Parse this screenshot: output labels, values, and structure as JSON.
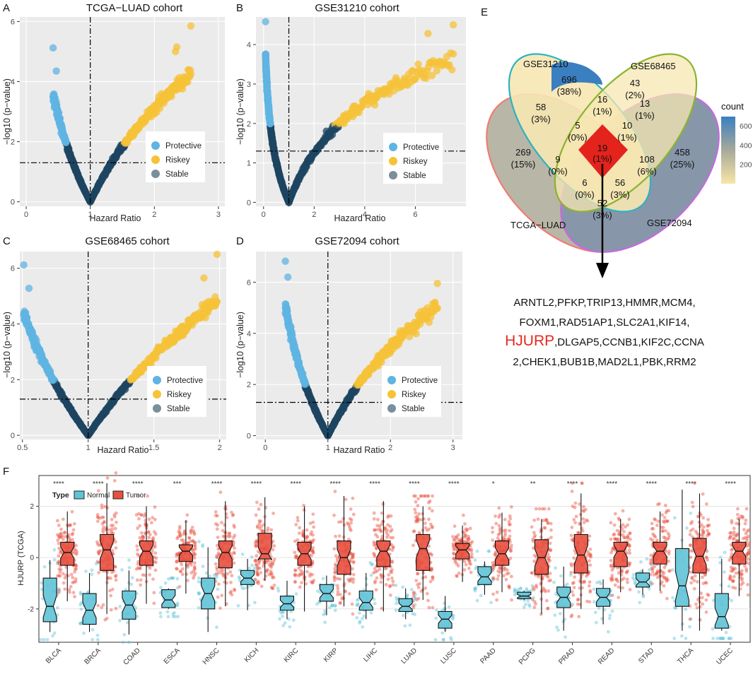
{
  "colors": {
    "protective": "#5fb4e2",
    "riskey": "#f6c238",
    "stable": "#1e4661",
    "panel_bg": "#ebebeb",
    "normal_box": "#5fc3d6",
    "tumor_box": "#e8503f",
    "venn_tcga": "#f07c73",
    "venn_gse31210": "#2c8fbd",
    "venn_gse68465": "#8ab32e",
    "venn_gse72094": "#c56ae0"
  },
  "volcano": {
    "xlabel": "Hazard Ratio",
    "ylabel": "−log10 (p−value)",
    "legend": [
      "Protective",
      "Riskey",
      "Stable"
    ]
  },
  "chart_data": [
    {
      "type": "scatter",
      "letter": "A",
      "title": "TCGA−LUAD cohort",
      "xlim": [
        -0.1,
        3.1
      ],
      "ylim": [
        -0.15,
        6.15
      ],
      "xticks": [
        0,
        1,
        2,
        3
      ],
      "yticks": [
        0,
        2,
        4,
        6
      ],
      "vline": 1,
      "hline": 1.3,
      "left_x_min": 0.42,
      "right_x_max": 2.57,
      "stable_x_range": [
        0.65,
        1.62
      ],
      "outliers": [
        [
          0.42,
          5.12
        ],
        [
          0.47,
          4.35
        ],
        [
          2.57,
          5.85
        ],
        [
          2.35,
          5.15
        ],
        [
          2.33,
          5.0
        ]
      ],
      "series": [
        "Protective",
        "Riskey",
        "Stable"
      ]
    },
    {
      "type": "scatter",
      "letter": "B",
      "title": "GSE31210 cohort",
      "xlim": [
        -0.3,
        8.0
      ],
      "ylim": [
        -0.1,
        4.7
      ],
      "xticks": [
        0,
        2,
        4,
        6
      ],
      "yticks": [
        0,
        1,
        2,
        3,
        4
      ],
      "vline": 1,
      "hline": 1.3,
      "left_x_min": 0.08,
      "right_x_max": 7.5,
      "stable_x_range": [
        0.45,
        2.0
      ],
      "outliers": [
        [
          0.08,
          4.58
        ],
        [
          7.5,
          4.5
        ],
        [
          6.5,
          4.28
        ]
      ],
      "series": [
        "Protective",
        "Riskey",
        "Stable"
      ]
    },
    {
      "type": "scatter",
      "letter": "C",
      "title": "GSE68465 cohort",
      "xlim": [
        0.48,
        2.05
      ],
      "ylim": [
        -0.15,
        6.6
      ],
      "xticks": [
        0.5,
        1.0,
        1.5,
        2.0
      ],
      "yticks": [
        0,
        2,
        4,
        6
      ],
      "vline": 1,
      "hline": 1.3,
      "left_x_min": 0.51,
      "right_x_max": 1.98,
      "stable_x_range": [
        0.58,
        1.45
      ],
      "outliers": [
        [
          0.51,
          6.12
        ],
        [
          0.55,
          5.28
        ],
        [
          1.98,
          6.5
        ],
        [
          1.88,
          5.65
        ]
      ],
      "series": [
        "Protective",
        "Riskey",
        "Stable"
      ]
    },
    {
      "type": "scatter",
      "letter": "D",
      "title": "GSE72094 cohort",
      "xlim": [
        -0.15,
        3.15
      ],
      "ylim": [
        -0.15,
        7.2
      ],
      "xticks": [
        0,
        1,
        2,
        3
      ],
      "yticks": [
        0,
        2,
        4,
        6
      ],
      "vline": 1,
      "hline": 1.3,
      "left_x_min": 0.32,
      "right_x_max": 2.75,
      "stable_x_range": [
        0.58,
        1.68
      ],
      "outliers": [
        [
          0.32,
          6.82
        ],
        [
          0.36,
          6.2
        ],
        [
          2.75,
          5.95
        ]
      ],
      "series": [
        "Protective",
        "Riskey",
        "Stable"
      ]
    },
    {
      "type": "venn",
      "letter": "E",
      "sets": [
        "GSE31210",
        "GSE68465",
        "TCGA−LUAD",
        "GSE72094"
      ],
      "regions": [
        {
          "count": "696",
          "pct": "(38%)"
        },
        {
          "count": "43",
          "pct": "(2%)"
        },
        {
          "count": "16",
          "pct": "(1%)"
        },
        {
          "count": "58",
          "pct": "(3%)"
        },
        {
          "count": "13",
          "pct": "(1%)"
        },
        {
          "count": "5",
          "pct": "(0%)"
        },
        {
          "count": "10",
          "pct": "(1%)"
        },
        {
          "count": "269",
          "pct": "(15%)"
        },
        {
          "count": "9",
          "pct": "(0%)"
        },
        {
          "count": "19",
          "pct": "(1%)"
        },
        {
          "count": "108",
          "pct": "(6%)"
        },
        {
          "count": "458",
          "pct": "(25%)"
        },
        {
          "count": "6",
          "pct": "(0%)"
        },
        {
          "count": "56",
          "pct": "(3%)"
        },
        {
          "count": "52",
          "pct": "(3%)"
        }
      ],
      "legend_title": "count",
      "legend_ticks": [
        "600",
        "400",
        "200"
      ],
      "legend_range": [
        0,
        696
      ],
      "genes_line1": "ARNTL2,PFKP,TRIP13,HMMR,MCM4,",
      "genes_line2": "FOXM1,RAD51AP1,SLC2A1,KIF14,",
      "genes_line3_red": "HJURP",
      "genes_line3_rest": ",DLGAP5,CCNB1,KIF2C,CCNA",
      "genes_line4": "2,CHEK1,BUB1B,MAD2L1,PBK,RRM2"
    },
    {
      "type": "box",
      "letter": "F",
      "ylabel": "HJURP (TCGA)",
      "legend_title": "Type",
      "legend": [
        "Normal",
        "Tumor"
      ],
      "ylim": [
        -3.3,
        3.2
      ],
      "yticks": [
        -2,
        0,
        2
      ],
      "categories": [
        "BLCA",
        "BRCA",
        "COAD",
        "ESCA",
        "HNSC",
        "KICH",
        "KIRC",
        "KIRP",
        "LIHC",
        "LUAD",
        "LUSC",
        "PAAD",
        "PCPG",
        "PRAD",
        "READ",
        "STAD",
        "THCA",
        "UCEC"
      ],
      "significance": [
        "****",
        "****",
        "****",
        "***",
        "****",
        "****",
        "****",
        "****",
        "****",
        "****",
        "****",
        "*",
        "**",
        "****",
        "****",
        "****",
        "****",
        "****"
      ],
      "series": [
        {
          "name": "Normal",
          "stats": [
            [
              -2.9,
              -2.5,
              -1.9,
              -0.8,
              -0.1
            ],
            [
              -2.9,
              -2.6,
              -2.05,
              -1.4,
              -0.6
            ],
            [
              -3.0,
              -2.4,
              -1.85,
              -1.3,
              -0.5
            ],
            [
              -2.0,
              -1.95,
              -1.65,
              -1.25,
              -1.2
            ],
            [
              -2.9,
              -2.0,
              -1.4,
              -0.8,
              0.4
            ],
            [
              -2.05,
              -1.05,
              -0.8,
              -0.5,
              -0.05
            ],
            [
              -2.4,
              -2.05,
              -1.8,
              -1.5,
              -0.9
            ],
            [
              -2.25,
              -1.7,
              -1.4,
              -1.05,
              -0.7
            ],
            [
              -2.4,
              -2.05,
              -1.75,
              -1.3,
              -0.6
            ],
            [
              -2.4,
              -2.1,
              -1.9,
              -1.6,
              -1.2
            ],
            [
              -2.9,
              -2.75,
              -2.4,
              -2.1,
              -1.5
            ],
            [
              -1.45,
              -1.05,
              -0.75,
              -0.35,
              -0.15
            ],
            [
              -1.65,
              -1.6,
              -1.5,
              -1.35,
              -1.3
            ],
            [
              -2.85,
              -1.95,
              -1.55,
              -1.15,
              -0.35
            ],
            [
              -2.6,
              -1.9,
              -1.55,
              -1.2,
              -0.85
            ],
            [
              -1.45,
              -1.15,
              -0.95,
              -0.6,
              -0.45
            ],
            [
              -2.85,
              -1.9,
              -1.1,
              0.35,
              2.65
            ],
            [
              -2.85,
              -2.75,
              -2.3,
              -1.4,
              -0.05
            ]
          ]
        },
        {
          "name": "Tumor",
          "stats": [
            [
              -1.7,
              -0.3,
              0.2,
              0.6,
              1.8
            ],
            [
              -2.2,
              -0.5,
              0.3,
              0.9,
              2.9
            ],
            [
              -1.8,
              -0.3,
              0.25,
              0.65,
              2.0
            ],
            [
              -1.4,
              -0.15,
              0.25,
              0.5,
              1.45
            ],
            [
              -1.9,
              -0.4,
              0.2,
              0.65,
              2.2
            ],
            [
              -0.9,
              -0.05,
              0.15,
              0.95,
              2.35
            ],
            [
              -2.1,
              -0.3,
              0.15,
              0.6,
              2.0
            ],
            [
              -1.9,
              -0.65,
              0.0,
              0.65,
              2.4
            ],
            [
              -2.1,
              -0.35,
              0.25,
              0.65,
              2.2
            ],
            [
              -1.65,
              -0.5,
              0.35,
              0.9,
              2.0
            ],
            [
              -0.95,
              -0.05,
              0.3,
              0.55,
              1.25
            ],
            [
              -1.35,
              -0.3,
              0.15,
              0.65,
              1.75
            ],
            [
              -2.2,
              -0.65,
              0.0,
              0.7,
              1.5
            ],
            [
              -2.0,
              -0.6,
              0.1,
              0.9,
              2.5
            ],
            [
              -1.35,
              -0.35,
              0.25,
              0.6,
              1.5
            ],
            [
              -1.3,
              -0.25,
              0.25,
              0.6,
              1.8
            ],
            [
              -2.85,
              -0.6,
              0.05,
              0.75,
              2.5
            ],
            [
              -1.5,
              -0.25,
              0.25,
              0.6,
              1.5
            ]
          ]
        }
      ]
    }
  ]
}
